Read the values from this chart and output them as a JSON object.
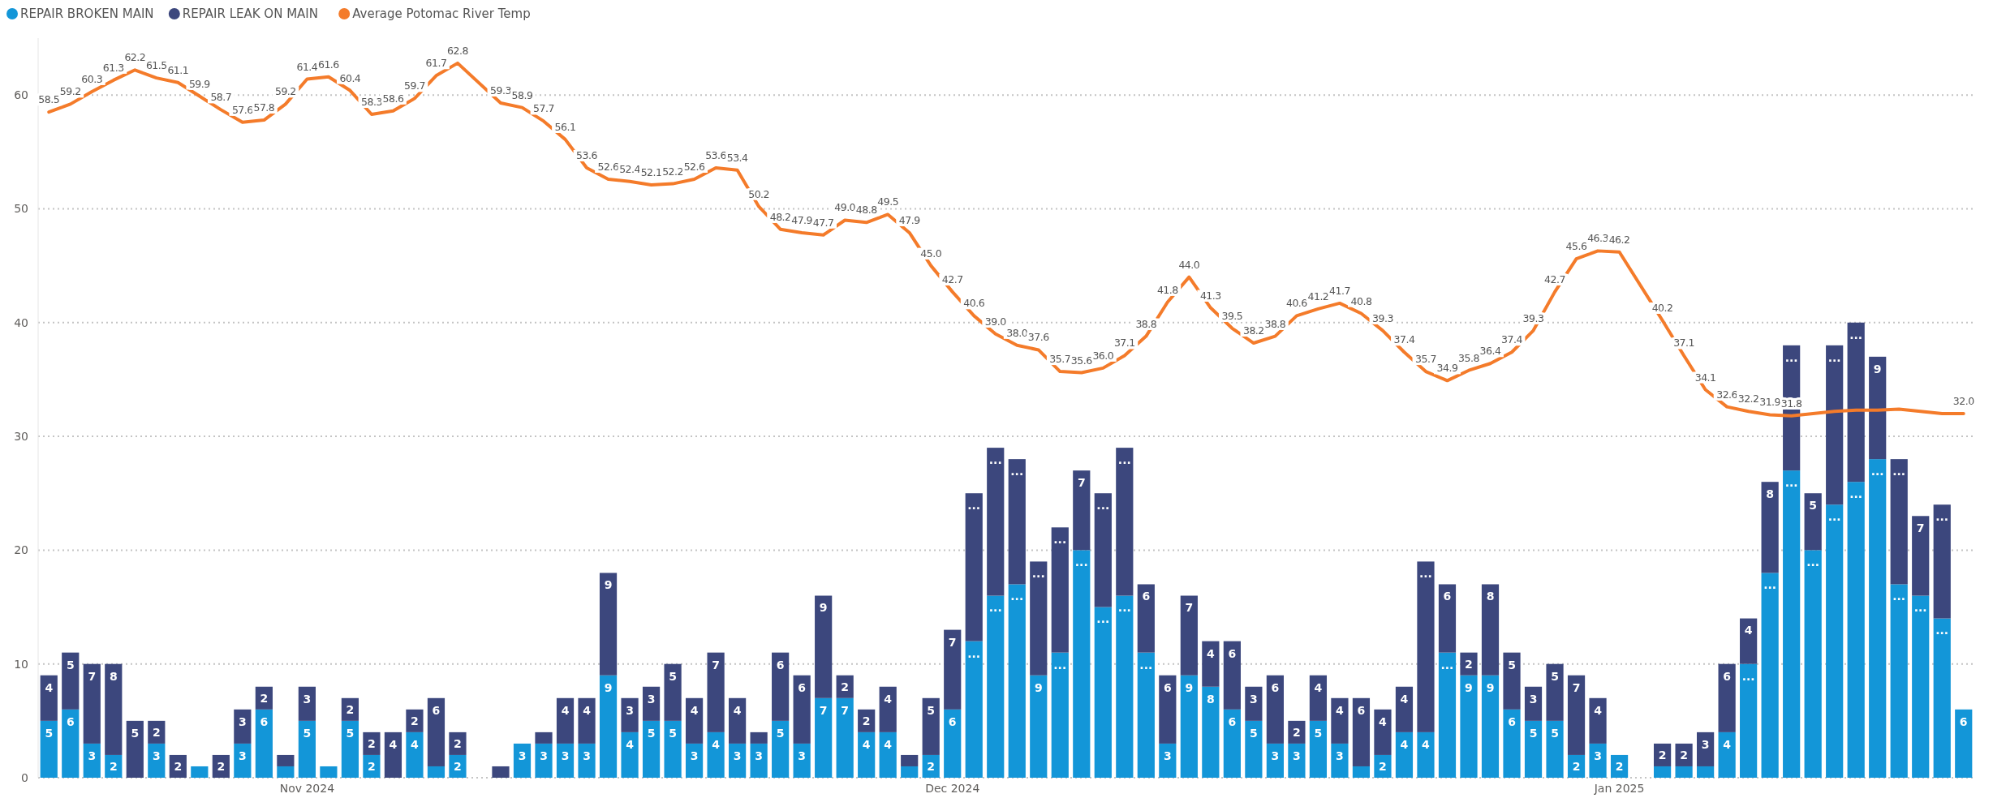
{
  "chart_data": {
    "type": "bar",
    "stacked": true,
    "legend": "top left",
    "grid": "y",
    "x": [
      "2024-10-20",
      "2024-10-21",
      "2024-10-22",
      "2024-10-23",
      "2024-10-24",
      "2024-10-25",
      "2024-10-26",
      "2024-10-27",
      "2024-10-28",
      "2024-10-29",
      "2024-10-30",
      "2024-10-31",
      "2024-11-01",
      "2024-11-02",
      "2024-11-03",
      "2024-11-04",
      "2024-11-05",
      "2024-11-06",
      "2024-11-07",
      "2024-11-08",
      "2024-11-10",
      "2024-11-11",
      "2024-11-12",
      "2024-11-13",
      "2024-11-14",
      "2024-11-15",
      "2024-11-16",
      "2024-11-17",
      "2024-11-18",
      "2024-11-19",
      "2024-11-20",
      "2024-11-21",
      "2024-11-22",
      "2024-11-23",
      "2024-11-24",
      "2024-11-25",
      "2024-11-26",
      "2024-11-27",
      "2024-11-28",
      "2024-11-29",
      "2024-11-30",
      "2024-12-01",
      "2024-12-02",
      "2024-12-03",
      "2024-12-04",
      "2024-12-05",
      "2024-12-06",
      "2024-12-07",
      "2024-12-08",
      "2024-12-09",
      "2024-12-10",
      "2024-12-11",
      "2024-12-12",
      "2024-12-13",
      "2024-12-14",
      "2024-12-15",
      "2024-12-16",
      "2024-12-17",
      "2024-12-18",
      "2024-12-19",
      "2024-12-20",
      "2024-12-21",
      "2024-12-22",
      "2024-12-23",
      "2024-12-24",
      "2024-12-25",
      "2024-12-26",
      "2024-12-27",
      "2024-12-28",
      "2024-12-29",
      "2024-12-30",
      "2024-12-31",
      "2025-01-01",
      "2025-01-03",
      "2025-01-04",
      "2025-01-05",
      "2025-01-06",
      "2025-01-07",
      "2025-01-08",
      "2025-01-09",
      "2025-01-10",
      "2025-01-11",
      "2025-01-12",
      "2025-01-13",
      "2025-01-14",
      "2025-01-15",
      "2025-01-16",
      "2025-01-17"
    ],
    "xlim": [
      "2024-10-19T12:00",
      "2025-01-17T12:00"
    ],
    "xticks": [
      {
        "value": "2024-11-01",
        "label": "Nov 2024"
      },
      {
        "value": "2024-12-01",
        "label": "Dec 2024"
      },
      {
        "value": "2025-01-01",
        "label": "Jan 2025"
      }
    ],
    "ylim": [
      0,
      65
    ],
    "yticks": [
      0,
      10,
      20,
      30,
      40,
      50,
      60
    ],
    "series": [
      {
        "name": "REPAIR BROKEN MAIN",
        "color": "#1396d8",
        "values": [
          5,
          6,
          3,
          2,
          null,
          3,
          null,
          1,
          null,
          3,
          6,
          1,
          5,
          1,
          5,
          2,
          null,
          4,
          1,
          2,
          null,
          3,
          3,
          3,
          3,
          9,
          4,
          5,
          5,
          3,
          4,
          3,
          3,
          5,
          3,
          7,
          7,
          4,
          4,
          1,
          2,
          6,
          12,
          16,
          17,
          9,
          11,
          20,
          15,
          16,
          11,
          3,
          9,
          8,
          6,
          5,
          3,
          3,
          5,
          3,
          1,
          2,
          4,
          4,
          11,
          9,
          9,
          6,
          5,
          5,
          2,
          3,
          2,
          1,
          1,
          1,
          4,
          10,
          18,
          27,
          20,
          24,
          26,
          28,
          17,
          16,
          14,
          6
        ],
        "value_labels": [
          "5",
          "6",
          "3",
          "2",
          null,
          "3",
          null,
          null,
          null,
          "3",
          "6",
          null,
          "5",
          null,
          "5",
          "2",
          null,
          "4",
          null,
          "2",
          null,
          "3",
          "3",
          "3",
          "3",
          "9",
          "4",
          "5",
          "5",
          "3",
          "4",
          "3",
          "3",
          "5",
          "3",
          "7",
          "7",
          "4",
          "4",
          null,
          "2",
          "6",
          "...",
          "...",
          "...",
          "9",
          "...",
          "...",
          "...",
          "...",
          "...",
          "3",
          "9",
          "8",
          "6",
          "5",
          "3",
          "3",
          "5",
          "3",
          null,
          "2",
          "4",
          "4",
          "...",
          "9",
          "9",
          "6",
          "5",
          "5",
          "2",
          "3",
          "2",
          null,
          null,
          null,
          "4",
          "...",
          "...",
          "...",
          "...",
          "...",
          "...",
          "...",
          "...",
          "...",
          "...",
          "6"
        ]
      },
      {
        "name": "REPAIR LEAK ON MAIN",
        "color": "#3c477d",
        "values": [
          4,
          5,
          7,
          8,
          5,
          2,
          2,
          null,
          2,
          3,
          2,
          1,
          3,
          null,
          2,
          2,
          4,
          2,
          6,
          2,
          1,
          null,
          1,
          4,
          4,
          9,
          3,
          3,
          5,
          4,
          7,
          4,
          1,
          6,
          6,
          9,
          2,
          2,
          4,
          1,
          5,
          7,
          13,
          13,
          11,
          10,
          11,
          7,
          10,
          13,
          6,
          6,
          7,
          4,
          6,
          3,
          6,
          2,
          4,
          4,
          6,
          4,
          4,
          15,
          6,
          2,
          8,
          5,
          3,
          5,
          7,
          4,
          null,
          2,
          2,
          3,
          6,
          4,
          8,
          11,
          5,
          14,
          14,
          9,
          11,
          7,
          10,
          null
        ],
        "value_labels": [
          "4",
          "5",
          "7",
          "8",
          "5",
          "2",
          "2",
          null,
          "2",
          "3",
          "2",
          null,
          "3",
          null,
          "2",
          "2",
          "4",
          "2",
          "6",
          "2",
          null,
          null,
          null,
          "4",
          "4",
          "9",
          "3",
          "3",
          "5",
          "4",
          "7",
          "4",
          null,
          "6",
          "6",
          "9",
          "2",
          "2",
          "4",
          null,
          "5",
          "7",
          "...",
          "...",
          "...",
          "...",
          "...",
          "7",
          "...",
          "...",
          "6",
          "6",
          "7",
          "4",
          "6",
          "3",
          "6",
          "2",
          "4",
          "4",
          "6",
          "4",
          "4",
          "...",
          "6",
          "2",
          "8",
          "5",
          "3",
          "5",
          "7",
          "4",
          null,
          "2",
          "2",
          "3",
          "6",
          "4",
          "8",
          "...",
          "5",
          "...",
          "...",
          "9",
          "...",
          "7",
          "...",
          null
        ]
      },
      {
        "name": "Average Potomac River Temp",
        "type": "line",
        "color": "#f47b2a",
        "values": [
          58.5,
          59.2,
          60.3,
          61.3,
          62.2,
          61.5,
          61.1,
          59.9,
          58.7,
          57.6,
          57.8,
          59.2,
          61.4,
          61.6,
          60.4,
          58.3,
          58.6,
          59.7,
          61.7,
          62.8,
          59.3,
          58.9,
          57.7,
          56.1,
          53.6,
          52.6,
          52.4,
          52.1,
          52.2,
          52.6,
          53.6,
          53.4,
          50.2,
          48.2,
          47.9,
          47.7,
          49.0,
          48.8,
          49.5,
          47.9,
          45.0,
          42.7,
          40.6,
          39.0,
          38.0,
          37.6,
          35.7,
          35.6,
          36.0,
          37.1,
          38.8,
          41.8,
          44.0,
          41.3,
          39.5,
          38.2,
          38.8,
          40.6,
          41.2,
          41.7,
          40.8,
          39.3,
          37.4,
          35.7,
          34.9,
          35.8,
          36.4,
          37.4,
          39.3,
          42.7,
          45.6,
          46.3,
          46.2,
          40.2,
          37.1,
          34.1,
          32.6,
          32.2,
          31.9,
          31.8,
          32.0,
          32.2,
          32.3,
          32.3,
          32.4,
          32.2,
          32.0,
          32.0
        ],
        "value_labels": [
          "58.5",
          "59.2",
          "60.3",
          "61.3",
          "62.2",
          "61.5",
          "61.1",
          "59.9",
          "58.7",
          "57.6",
          "57.8",
          "59.2",
          "61.4",
          "61.6",
          "60.4",
          "58.3",
          "58.6",
          "59.7",
          "61.7",
          "62.8",
          "59.3",
          "58.9",
          "57.7",
          "56.1",
          "53.6",
          "52.6",
          "52.4",
          "52.1",
          "52.2",
          "52.6",
          "53.6",
          "53.4",
          "50.2",
          "48.2",
          "47.9",
          "47.7",
          "49.0",
          "48.8",
          "49.5",
          "47.9",
          "45.0",
          "42.7",
          "40.6",
          "39.0",
          "38.0",
          "37.6",
          "35.7",
          "35.6",
          "36.0",
          "37.1",
          "38.8",
          "41.8",
          "44.0",
          "41.3",
          "39.5",
          "38.2",
          "38.8",
          "40.6",
          "41.2",
          "41.7",
          "40.8",
          "39.3",
          "37.4",
          "35.7",
          "34.9",
          "35.8",
          "36.4",
          "37.4",
          "39.3",
          "42.7",
          "45.6",
          "46.3",
          "46.2",
          "40.2",
          "37.1",
          "34.1",
          "32.6",
          "32.2",
          "31.9",
          "31.8",
          null,
          null,
          null,
          null,
          null,
          null,
          null,
          "32.0"
        ]
      }
    ]
  }
}
